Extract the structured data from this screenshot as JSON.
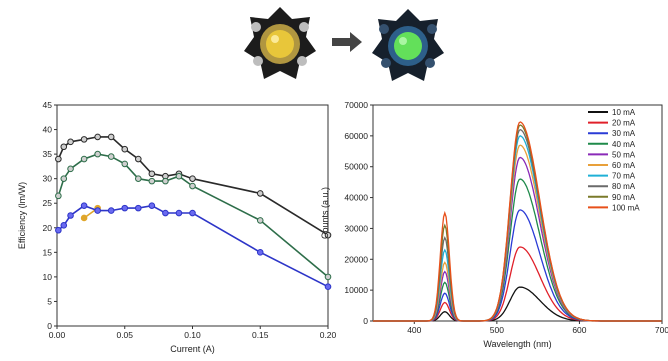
{
  "arrow_icon": "right-arrow-icon",
  "led_photos": [
    {
      "name": "yellow-led-photo",
      "glow_color": "#e8c63a",
      "body_color": "#b09640"
    },
    {
      "name": "green-led-photo",
      "glow_color": "#63e05a",
      "body_color": "#2d5f8a"
    }
  ],
  "chart_data": [
    {
      "type": "line",
      "xlabel": "Current (A)",
      "ylabel": "Efficiency (lm/W)",
      "xlim": [
        0,
        0.2
      ],
      "ylim": [
        0,
        45
      ],
      "xticks": [
        "0.00",
        "0.05",
        "0.10",
        "0.15",
        "0.20"
      ],
      "yticks": [
        "0",
        "5",
        "10",
        "15",
        "20",
        "25",
        "30",
        "35",
        "40",
        "45"
      ],
      "grid": false,
      "series": [
        {
          "color": "#2a2a2a",
          "marker_fill": "#cfcfcf",
          "x": [
            0.001,
            0.005,
            0.01,
            0.02,
            0.03,
            0.04,
            0.05,
            0.06,
            0.07,
            0.08,
            0.09,
            0.1,
            0.15,
            0.2
          ],
          "y": [
            34,
            36.5,
            37.5,
            38,
            38.5,
            38.5,
            36,
            34,
            31,
            30.5,
            31,
            30,
            27,
            18.5
          ]
        },
        {
          "color": "#2e6e4a",
          "marker_fill": "#cfcfcf",
          "x": [
            0.001,
            0.005,
            0.01,
            0.02,
            0.03,
            0.04,
            0.05,
            0.06,
            0.07,
            0.08,
            0.09,
            0.1,
            0.15,
            0.2
          ],
          "y": [
            26.5,
            30,
            32,
            34,
            35,
            34.5,
            33,
            30,
            29.5,
            29.5,
            30.5,
            28.5,
            21.5,
            10
          ]
        },
        {
          "color": "#e0a62a",
          "marker_fill": "#e0a62a",
          "x": [
            0.02,
            0.03
          ],
          "y": [
            22,
            24
          ]
        },
        {
          "color": "#2d35c8",
          "marker_fill": "#6a6af0",
          "x": [
            0.001,
            0.005,
            0.01,
            0.02,
            0.03,
            0.04,
            0.05,
            0.06,
            0.07,
            0.08,
            0.09,
            0.1,
            0.15,
            0.2
          ],
          "y": [
            19.5,
            20.5,
            22.5,
            24.5,
            23.5,
            23.5,
            24,
            24,
            24.5,
            23,
            23,
            23,
            15,
            8
          ]
        }
      ]
    },
    {
      "type": "line",
      "xlabel": "Wavelength (nm)",
      "ylabel": "Counts (a.u.)",
      "xlim": [
        350,
        700
      ],
      "ylim": [
        0,
        70000
      ],
      "xticks": [
        "400",
        "500",
        "600",
        "700"
      ],
      "yticks": [
        "0",
        "10000",
        "20000",
        "30000",
        "40000",
        "50000",
        "60000",
        "70000"
      ],
      "grid": false,
      "legend_position": "top-right",
      "peak_blue_nm": 437,
      "peak_green_nm": 528,
      "series": [
        {
          "name": "10 mA",
          "color": "#111111",
          "blue_peak": 3000,
          "green_peak": 11000
        },
        {
          "name": "20 mA",
          "color": "#e0202a",
          "blue_peak": 6000,
          "green_peak": 24000
        },
        {
          "name": "30 mA",
          "color": "#2a3bd6",
          "blue_peak": 9000,
          "green_peak": 36000
        },
        {
          "name": "40 mA",
          "color": "#1f8a4a",
          "blue_peak": 12500,
          "green_peak": 46000
        },
        {
          "name": "50 mA",
          "color": "#8a2ab8",
          "blue_peak": 16000,
          "green_peak": 53000
        },
        {
          "name": "60 mA",
          "color": "#e8a03a",
          "blue_peak": 19000,
          "green_peak": 57000
        },
        {
          "name": "70 mA",
          "color": "#1fb0d6",
          "blue_peak": 23000,
          "green_peak": 60000
        },
        {
          "name": "80 mA",
          "color": "#6a6a6a",
          "blue_peak": 27000,
          "green_peak": 62000
        },
        {
          "name": "90 mA",
          "color": "#7a7a2a",
          "blue_peak": 31000,
          "green_peak": 63500
        },
        {
          "name": "100 mA",
          "color": "#e8501a",
          "blue_peak": 35000,
          "green_peak": 64500
        }
      ]
    }
  ]
}
